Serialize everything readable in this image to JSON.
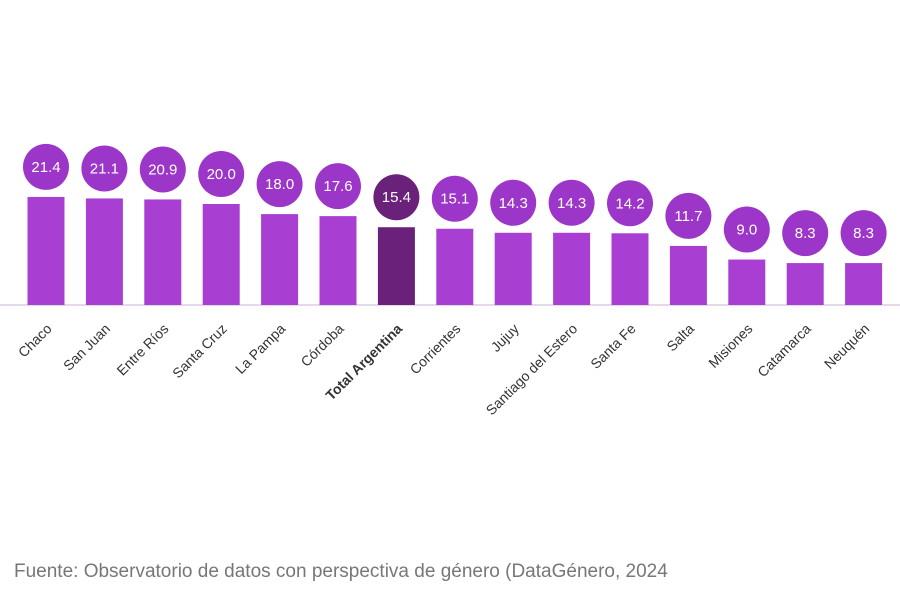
{
  "chart_data": {
    "type": "bar",
    "categories": [
      "Chaco",
      "San Juan",
      "Entre Ríos",
      "Santa Cruz",
      "La Pampa",
      "Córdoba",
      "Total Argentina",
      "Corrientes",
      "Jujuy",
      "Santiago del Estero",
      "Santa Fe",
      "Salta",
      "Misiones",
      "Catamarca",
      "Neuquén"
    ],
    "values": [
      21.4,
      21.1,
      20.9,
      20.0,
      18.0,
      17.6,
      15.4,
      15.1,
      14.3,
      14.3,
      14.2,
      11.7,
      9.0,
      8.3,
      8.3
    ],
    "value_labels": [
      "21.4",
      "21.1",
      "20.9",
      "20.0",
      "18.0",
      "17.6",
      "15.4",
      "15.1",
      "14.3",
      "14.3",
      "14.2",
      "11.7",
      "9.0",
      "8.3",
      "8.3"
    ],
    "colors": [
      "#a83fd2",
      "#a83fd2",
      "#a83fd2",
      "#a83fd2",
      "#a83fd2",
      "#a83fd2",
      "#6a2179",
      "#a83fd2",
      "#a83fd2",
      "#a83fd2",
      "#a83fd2",
      "#a83fd2",
      "#a83fd2",
      "#a83fd2",
      "#a83fd2"
    ],
    "source": "Fuente: Observatorio de datos con perspectiva de género (DataGénero, 2024"
  }
}
